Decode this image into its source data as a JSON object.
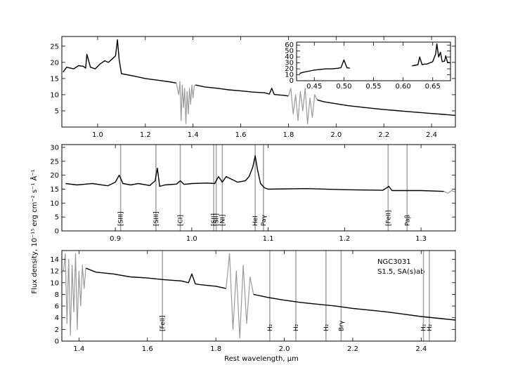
{
  "chart_data": [
    {
      "id": "top",
      "type": "line",
      "xlim": [
        0.85,
        2.5
      ],
      "ylim": [
        0,
        28
      ],
      "xticks": [
        "1.0",
        "1.2",
        "1.4",
        "1.6",
        "1.8",
        "2.0",
        "2.2",
        "2.4"
      ],
      "yticks": [
        "5",
        "10",
        "15",
        "20",
        "25"
      ],
      "series": [
        {
          "style": "spec",
          "x": [
            0.855,
            0.87,
            0.9,
            0.92,
            0.94,
            0.95,
            0.955,
            0.97,
            0.99,
            1.01,
            1.03,
            1.045,
            1.06,
            1.075,
            1.083,
            1.09,
            1.1,
            1.15,
            1.2,
            1.25,
            1.3,
            1.33
          ],
          "y": [
            17,
            18.5,
            18,
            19,
            18.8,
            18.2,
            22.5,
            18.5,
            18,
            19.5,
            20.5,
            20,
            21,
            22,
            27,
            21,
            16.5,
            15.8,
            15,
            14.5,
            14,
            13.6
          ]
        },
        {
          "style": "tell",
          "x": [
            1.33,
            1.34,
            1.345,
            1.35,
            1.355,
            1.36,
            1.365,
            1.37,
            1.375,
            1.38,
            1.385,
            1.39,
            1.395,
            1.4,
            1.405,
            1.41
          ],
          "y": [
            13.6,
            10,
            14,
            2,
            13,
            6,
            12,
            1,
            11,
            4,
            12,
            7,
            13,
            9,
            12.8,
            13
          ]
        },
        {
          "style": "spec",
          "x": [
            1.41,
            1.45,
            1.5,
            1.55,
            1.6,
            1.65,
            1.7,
            1.72,
            1.73,
            1.74,
            1.75,
            1.78,
            1.8
          ],
          "y": [
            13,
            12.4,
            12,
            11.5,
            11.2,
            10.8,
            10.6,
            10.2,
            12,
            10.1,
            10,
            9.8,
            9.6
          ]
        },
        {
          "style": "tell",
          "x": [
            1.8,
            1.81,
            1.82,
            1.83,
            1.84,
            1.85,
            1.86,
            1.87,
            1.88,
            1.89,
            1.9,
            1.91,
            1.92
          ],
          "y": [
            9.6,
            12,
            4,
            10,
            2,
            11,
            5,
            12,
            1,
            9,
            3,
            10,
            8.4
          ]
        },
        {
          "style": "spec",
          "x": [
            1.92,
            1.95,
            2.0,
            2.05,
            2.1,
            2.15,
            2.2,
            2.25,
            2.3,
            2.35,
            2.4,
            2.45,
            2.5
          ],
          "y": [
            8.4,
            7.8,
            7.2,
            6.6,
            6.2,
            5.8,
            5.4,
            5.1,
            4.8,
            4.5,
            4.2,
            3.9,
            3.6
          ]
        }
      ],
      "ylabel": "Flux density, 10⁻¹⁵ erg cm⁻² s⁻¹ Å⁻¹"
    },
    {
      "id": "inset",
      "type": "line",
      "xlim": [
        0.42,
        0.68
      ],
      "ylim": [
        0,
        65
      ],
      "xticks": [
        "0.45",
        "0.50",
        "0.55",
        "0.60",
        "0.65"
      ],
      "yticks": [
        "0",
        "10",
        "20",
        "30",
        "40",
        "50",
        "60"
      ],
      "series": [
        {
          "style": "spec",
          "x": [
            0.425,
            0.43,
            0.44,
            0.45,
            0.46,
            0.47,
            0.48,
            0.49,
            0.495,
            0.5,
            0.505,
            0.51
          ],
          "y": [
            12,
            14,
            16,
            18,
            19,
            20,
            20,
            21,
            22,
            35,
            22,
            21
          ]
        },
        {
          "style": "spec",
          "x": [
            0.615,
            0.62,
            0.625,
            0.628,
            0.632,
            0.636,
            0.64,
            0.645,
            0.65,
            0.655,
            0.657,
            0.66,
            0.663,
            0.666,
            0.67,
            0.672,
            0.675,
            0.68
          ],
          "y": [
            25,
            26,
            27,
            40,
            27,
            28,
            28,
            30,
            32,
            45,
            62,
            40,
            48,
            32,
            33,
            42,
            31,
            30
          ]
        }
      ]
    },
    {
      "id": "middle",
      "type": "line",
      "xlim": [
        0.83,
        1.345
      ],
      "ylim": [
        0,
        31
      ],
      "xticks": [
        "0.9",
        "1.0",
        "1.1",
        "1.2",
        "1.3"
      ],
      "yticks": [
        "0",
        "5",
        "10",
        "15",
        "20",
        "25",
        "30"
      ],
      "series": [
        {
          "style": "spec",
          "x": [
            0.835,
            0.85,
            0.87,
            0.89,
            0.9,
            0.905,
            0.91,
            0.92,
            0.93,
            0.945,
            0.952,
            0.955,
            0.958,
            0.965,
            0.98,
            0.985,
            0.99,
            1.0,
            1.02,
            1.03,
            1.035,
            1.04,
            1.045,
            1.06,
            1.07,
            1.075,
            1.08,
            1.083,
            1.086,
            1.09,
            1.095,
            1.1,
            1.15,
            1.2,
            1.25,
            1.258,
            1.262,
            1.3,
            1.33
          ],
          "y": [
            17,
            16.5,
            17,
            16.2,
            17.5,
            20,
            17,
            16.5,
            17,
            16.3,
            18,
            22.5,
            16,
            16.5,
            16.8,
            18,
            16.7,
            17,
            17.2,
            17,
            19.5,
            17.5,
            19.5,
            17.5,
            18,
            19.5,
            23,
            27,
            22,
            17,
            15.5,
            15,
            15.2,
            14.8,
            14.6,
            16,
            14.5,
            14.5,
            14.2
          ]
        },
        {
          "style": "tell",
          "x": [
            1.33,
            1.335,
            1.34,
            1.345
          ],
          "y": [
            14.2,
            13.5,
            14.5,
            14
          ]
        }
      ],
      "lines": [
        {
          "x": 0.9069,
          "label": "[SIII]"
        },
        {
          "x": 0.9531,
          "label": "[SIII]"
        },
        {
          "x": 0.985,
          "label": "[CI]"
        },
        {
          "x": 1.0287,
          "label": "[SII]"
        },
        {
          "x": 1.032,
          "label": "[SII]"
        },
        {
          "x": 1.04,
          "label": "[NI]"
        },
        {
          "x": 1.083,
          "label": "HeI"
        },
        {
          "x": 1.0938,
          "label": "Paγ"
        },
        {
          "x": 1.257,
          "label": "[FeII]"
        },
        {
          "x": 1.2818,
          "label": "Paβ"
        }
      ]
    },
    {
      "id": "bottom",
      "type": "line",
      "xlim": [
        1.35,
        2.5
      ],
      "ylim": [
        0,
        15.5
      ],
      "xticks": [
        "1.4",
        "1.6",
        "1.8",
        "2.0",
        "2.2",
        "2.4"
      ],
      "yticks": [
        "0",
        "2",
        "4",
        "6",
        "8",
        "10",
        "12",
        "14"
      ],
      "series": [
        {
          "style": "tell",
          "x": [
            1.355,
            1.36,
            1.365,
            1.37,
            1.375,
            1.38,
            1.385,
            1.39,
            1.395,
            1.4,
            1.405,
            1.41,
            1.415,
            1.42
          ],
          "y": [
            12,
            15,
            3,
            14,
            1,
            13,
            5,
            15,
            2,
            12,
            6,
            13,
            9,
            12.5
          ]
        },
        {
          "style": "spec",
          "x": [
            1.42,
            1.45,
            1.5,
            1.55,
            1.6,
            1.65,
            1.7,
            1.72,
            1.73,
            1.74,
            1.75,
            1.78,
            1.8,
            1.83
          ],
          "y": [
            12.5,
            11.8,
            11.5,
            11,
            10.8,
            10.5,
            10.3,
            10,
            11.5,
            9.8,
            9.7,
            9.5,
            9.4,
            9
          ]
        },
        {
          "style": "tell",
          "x": [
            1.83,
            1.84,
            1.85,
            1.86,
            1.87,
            1.88,
            1.89,
            1.9,
            1.91
          ],
          "y": [
            9,
            15,
            2,
            12,
            0.5,
            13,
            3,
            11,
            8
          ]
        },
        {
          "style": "spec",
          "x": [
            1.91,
            1.95,
            2.0,
            2.05,
            2.1,
            2.15,
            2.2,
            2.25,
            2.3,
            2.35,
            2.4,
            2.45,
            2.5
          ],
          "y": [
            8,
            7.5,
            7,
            6.6,
            6.3,
            6,
            5.6,
            5.3,
            5,
            4.6,
            4.2,
            3.9,
            3.6
          ]
        }
      ],
      "lines": [
        {
          "x": 1.644,
          "label": "[FeII]"
        },
        {
          "x": 1.9576,
          "label": "H₂"
        },
        {
          "x": 2.0338,
          "label": "H₂"
        },
        {
          "x": 2.1218,
          "label": "H₂"
        },
        {
          "x": 2.1661,
          "label": "Brγ"
        },
        {
          "x": 2.4066,
          "label": "H₂"
        },
        {
          "x": 2.4237,
          "label": "H₂"
        }
      ],
      "annotations": [
        "NGC3031",
        "S1.5,  SA(s)ab"
      ],
      "xlabel": "Rest wavelength, μm"
    }
  ]
}
